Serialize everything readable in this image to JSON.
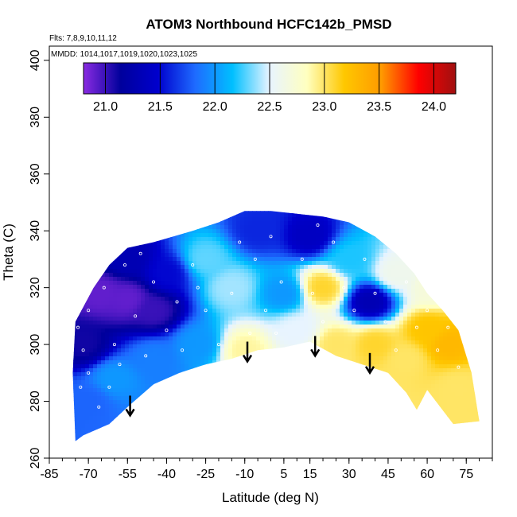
{
  "chart_data": {
    "type": "heatmap",
    "title": "ATOM3 Northbound HCFC142b_PMSD",
    "flights_label": "Flts: 7,8,9,10,11,12",
    "mmdd_label": "MMDD: 1014,1017,1019,1020,1023,1025",
    "xlabel": "Latitude (deg N)",
    "ylabel": "Theta (C)",
    "xlim": [
      -85,
      85
    ],
    "ylim": [
      260,
      405
    ],
    "x_ticks": [
      -85,
      -70,
      -55,
      -40,
      -25,
      -10,
      5,
      15,
      30,
      45,
      60,
      75
    ],
    "y_ticks": [
      260,
      280,
      300,
      320,
      340,
      360,
      380,
      400
    ],
    "colorbar": {
      "range": [
        20.8,
        24.2
      ],
      "ticks": [
        21.0,
        21.5,
        22.0,
        22.5,
        23.0,
        23.5,
        24.0
      ],
      "stops": [
        "#8a2be2",
        "#00009c",
        "#0000cd",
        "#1e6bff",
        "#00bfff",
        "#e8f4ff",
        "#ffffc0",
        "#ffc800",
        "#ff9a00",
        "#ff0000",
        "#a01010"
      ]
    },
    "field_centers": [
      {
        "lat": -72,
        "theta": 300,
        "value": 21.1
      },
      {
        "lat": -65,
        "theta": 318,
        "value": 20.9
      },
      {
        "lat": -55,
        "theta": 316,
        "value": 20.9
      },
      {
        "lat": -45,
        "theta": 312,
        "value": 21.0
      },
      {
        "lat": -55,
        "theta": 330,
        "value": 21.3
      },
      {
        "lat": -40,
        "theta": 325,
        "value": 21.5
      },
      {
        "lat": -70,
        "theta": 280,
        "value": 21.8
      },
      {
        "lat": -60,
        "theta": 288,
        "value": 22.0
      },
      {
        "lat": -45,
        "theta": 295,
        "value": 21.9
      },
      {
        "lat": -25,
        "theta": 330,
        "value": 22.3
      },
      {
        "lat": -28,
        "theta": 300,
        "value": 22.0
      },
      {
        "lat": -15,
        "theta": 320,
        "value": 22.4
      },
      {
        "lat": -10,
        "theta": 298,
        "value": 22.9
      },
      {
        "lat": -5,
        "theta": 340,
        "value": 21.6
      },
      {
        "lat": 5,
        "theta": 318,
        "value": 22.0
      },
      {
        "lat": 10,
        "theta": 305,
        "value": 22.5
      },
      {
        "lat": 15,
        "theta": 338,
        "value": 21.4
      },
      {
        "lat": 20,
        "theta": 320,
        "value": 23.1
      },
      {
        "lat": 25,
        "theta": 300,
        "value": 23.0
      },
      {
        "lat": 30,
        "theta": 330,
        "value": 22.2
      },
      {
        "lat": 38,
        "theta": 315,
        "value": 21.3
      },
      {
        "lat": 40,
        "theta": 300,
        "value": 23.1
      },
      {
        "lat": 48,
        "theta": 325,
        "value": 22.6
      },
      {
        "lat": 52,
        "theta": 295,
        "value": 23.0
      },
      {
        "lat": 60,
        "theta": 305,
        "value": 23.2
      },
      {
        "lat": 68,
        "theta": 300,
        "value": 23.3
      },
      {
        "lat": 72,
        "theta": 285,
        "value": 23.0
      },
      {
        "lat": 62,
        "theta": 320,
        "value": 22.7
      }
    ],
    "coverage_top": [
      [
        -75,
        308
      ],
      [
        -68,
        320
      ],
      [
        -62,
        328
      ],
      [
        -55,
        334
      ],
      [
        -45,
        336
      ],
      [
        -30,
        340
      ],
      [
        -20,
        343
      ],
      [
        -10,
        347
      ],
      [
        0,
        347
      ],
      [
        10,
        346
      ],
      [
        20,
        345
      ],
      [
        30,
        343
      ],
      [
        40,
        338
      ],
      [
        48,
        332
      ],
      [
        55,
        325
      ],
      [
        60,
        318
      ],
      [
        66,
        312
      ],
      [
        72,
        305
      ],
      [
        77,
        290
      ],
      [
        80,
        273
      ]
    ],
    "coverage_bottom": [
      [
        -75,
        308
      ],
      [
        -76,
        290
      ],
      [
        -75,
        266
      ],
      [
        -72,
        268
      ],
      [
        -62,
        272
      ],
      [
        -55,
        278
      ],
      [
        -45,
        286
      ],
      [
        -35,
        290
      ],
      [
        -25,
        293
      ],
      [
        -15,
        295
      ],
      [
        -5,
        298
      ],
      [
        5,
        299
      ],
      [
        15,
        301
      ],
      [
        25,
        296
      ],
      [
        35,
        293
      ],
      [
        45,
        290
      ],
      [
        52,
        283
      ],
      [
        56,
        277
      ],
      [
        60,
        284
      ],
      [
        65,
        278
      ],
      [
        70,
        272
      ],
      [
        80,
        273
      ]
    ],
    "arrows": [
      {
        "lat": -54,
        "theta_start": 282,
        "theta_end": 275
      },
      {
        "lat": -9,
        "theta_start": 301,
        "theta_end": 294
      },
      {
        "lat": 17,
        "theta_start": 303,
        "theta_end": 296
      },
      {
        "lat": 38,
        "theta_start": 297,
        "theta_end": 290
      }
    ],
    "sample_points": [
      [
        -74,
        306
      ],
      [
        -72,
        298
      ],
      [
        -70,
        290
      ],
      [
        -73,
        285
      ],
      [
        -66,
        278
      ],
      [
        -62,
        285
      ],
      [
        -58,
        293
      ],
      [
        -70,
        312
      ],
      [
        -64,
        320
      ],
      [
        -56,
        328
      ],
      [
        -50,
        332
      ],
      [
        -45,
        322
      ],
      [
        -40,
        305
      ],
      [
        -36,
        315
      ],
      [
        -30,
        328
      ],
      [
        -25,
        312
      ],
      [
        -20,
        300
      ],
      [
        -15,
        318
      ],
      [
        -12,
        336
      ],
      [
        -6,
        330
      ],
      [
        -2,
        312
      ],
      [
        0,
        338
      ],
      [
        4,
        322
      ],
      [
        8,
        296
      ],
      [
        12,
        330
      ],
      [
        16,
        318
      ],
      [
        20,
        308
      ],
      [
        24,
        336
      ],
      [
        28,
        320
      ],
      [
        32,
        312
      ],
      [
        36,
        330
      ],
      [
        40,
        318
      ],
      [
        44,
        308
      ],
      [
        48,
        298
      ],
      [
        52,
        322
      ],
      [
        56,
        306
      ],
      [
        60,
        312
      ],
      [
        64,
        298
      ],
      [
        68,
        306
      ],
      [
        72,
        292
      ],
      [
        -60,
        300
      ],
      [
        -52,
        310
      ],
      [
        -48,
        296
      ],
      [
        -34,
        298
      ],
      [
        -28,
        320
      ],
      [
        -8,
        304
      ],
      [
        2,
        304
      ],
      [
        18,
        342
      ],
      [
        -44,
        338
      ],
      [
        46,
        336
      ]
    ]
  }
}
